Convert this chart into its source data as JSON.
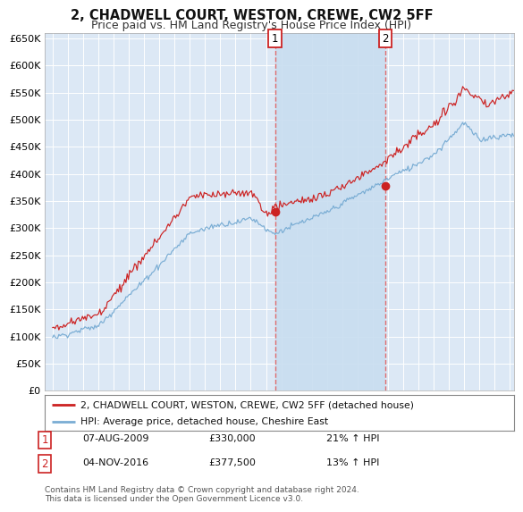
{
  "title": "2, CHADWELL COURT, WESTON, CREWE, CW2 5FF",
  "subtitle": "Price paid vs. HM Land Registry's House Price Index (HPI)",
  "ylim": [
    0,
    660000
  ],
  "yticks": [
    0,
    50000,
    100000,
    150000,
    200000,
    250000,
    300000,
    350000,
    400000,
    450000,
    500000,
    550000,
    600000,
    650000
  ],
  "xlim_start": 1994.5,
  "xlim_end": 2025.3,
  "background_color": "#ffffff",
  "plot_bg_color": "#dce8f5",
  "highlight_color": "#c8ddf0",
  "grid_color": "#ffffff",
  "red_line_color": "#cc2222",
  "blue_line_color": "#7aadd4",
  "vline_color": "#e06060",
  "transaction1_x": 2009.59,
  "transaction2_x": 2016.84,
  "transaction1_price": 330000,
  "transaction2_price": 377500,
  "transaction1_label": "07-AUG-2009",
  "transaction1_hpi": "21% ↑ HPI",
  "transaction2_label": "04-NOV-2016",
  "transaction2_hpi": "13% ↑ HPI",
  "legend_line1": "2, CHADWELL COURT, WESTON, CREWE, CW2 5FF (detached house)",
  "legend_line2": "HPI: Average price, detached house, Cheshire East",
  "footer": "Contains HM Land Registry data © Crown copyright and database right 2024.\nThis data is licensed under the Open Government Licence v3.0.",
  "title_fontsize": 10.5,
  "subtitle_fontsize": 9,
  "tick_fontsize": 8
}
